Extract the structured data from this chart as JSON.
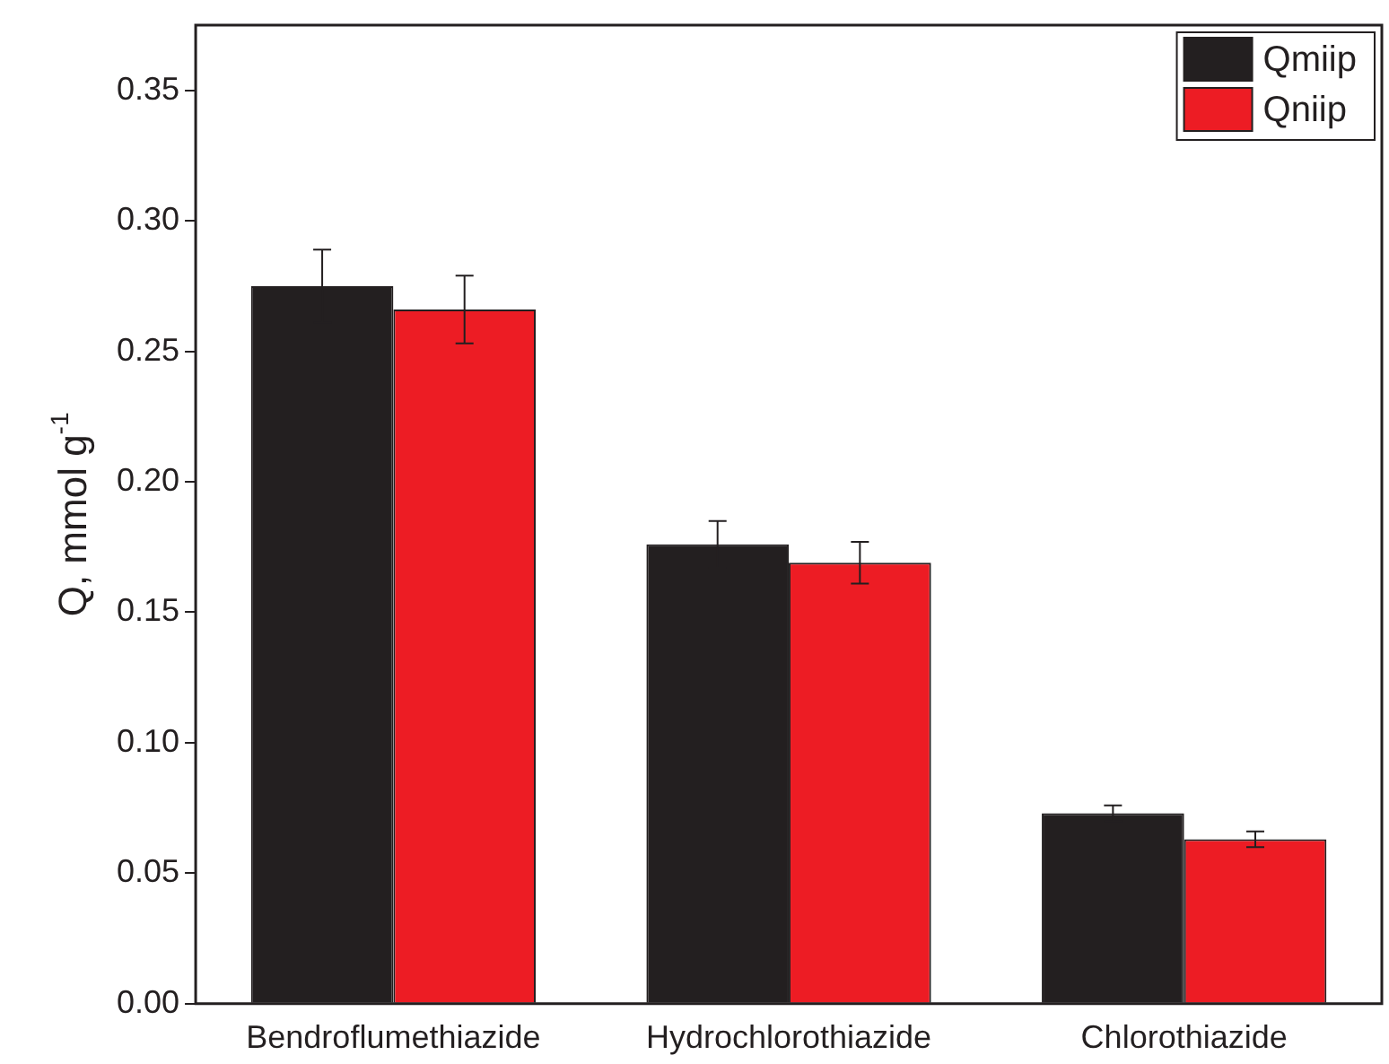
{
  "chart_data": {
    "type": "bar",
    "ylabel": "Q, mmol g$^{-1}$",
    "categories": [
      "Bendroflumethiazide",
      "Hydrochlorothiazide",
      "Chlorothiazide"
    ],
    "series": [
      {
        "name": "Qmiip",
        "color": "#231f20",
        "values": [
          0.275,
          0.176,
          0.073
        ],
        "errors": [
          0.014,
          0.009,
          0.003
        ]
      },
      {
        "name": "Qniip",
        "color": "#ed1c24",
        "values": [
          0.266,
          0.169,
          0.063
        ],
        "errors": [
          0.013,
          0.008,
          0.003
        ]
      }
    ],
    "ylim": [
      0,
      0.375
    ],
    "yticks": [
      {
        "value": 0,
        "label": "0.00"
      },
      {
        "value": 0.05,
        "label": "0.05"
      },
      {
        "value": 0.1,
        "label": "0.10"
      },
      {
        "value": 0.15,
        "label": "0.15"
      },
      {
        "value": 0.2,
        "label": "0.20"
      },
      {
        "value": 0.25,
        "label": "0.25"
      },
      {
        "value": 0.3,
        "label": "0.30"
      },
      {
        "value": 0.35,
        "label": "0.35"
      }
    ],
    "legend": "top right",
    "grid": false
  }
}
